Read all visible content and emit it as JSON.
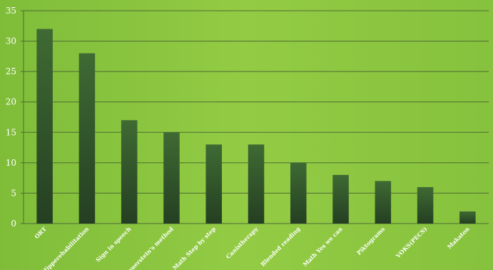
{
  "chart_data": {
    "type": "bar",
    "categories": [
      "ORT",
      "Hipperehabilitation",
      "Sign in speech",
      "Feuerstein's method",
      "Math Step by step",
      "Canistherapy",
      "Blended reading",
      "Math Yes we can",
      "Piktograms",
      "VOKS(PECS)",
      "Makaton"
    ],
    "values": [
      32,
      28,
      17,
      15,
      13,
      13,
      10,
      8,
      7,
      6,
      2
    ],
    "ylim": [
      0,
      35
    ],
    "yticks": [
      0,
      5,
      10,
      15,
      20,
      25,
      30,
      35
    ],
    "grid": true,
    "title": "",
    "xlabel": "",
    "ylabel": "",
    "colors": {
      "background": "#8cc63e",
      "bar_top": "#3f6a33",
      "bar_bottom": "#243f22",
      "grid": "#4f6b34",
      "text": "#ffffff"
    }
  }
}
